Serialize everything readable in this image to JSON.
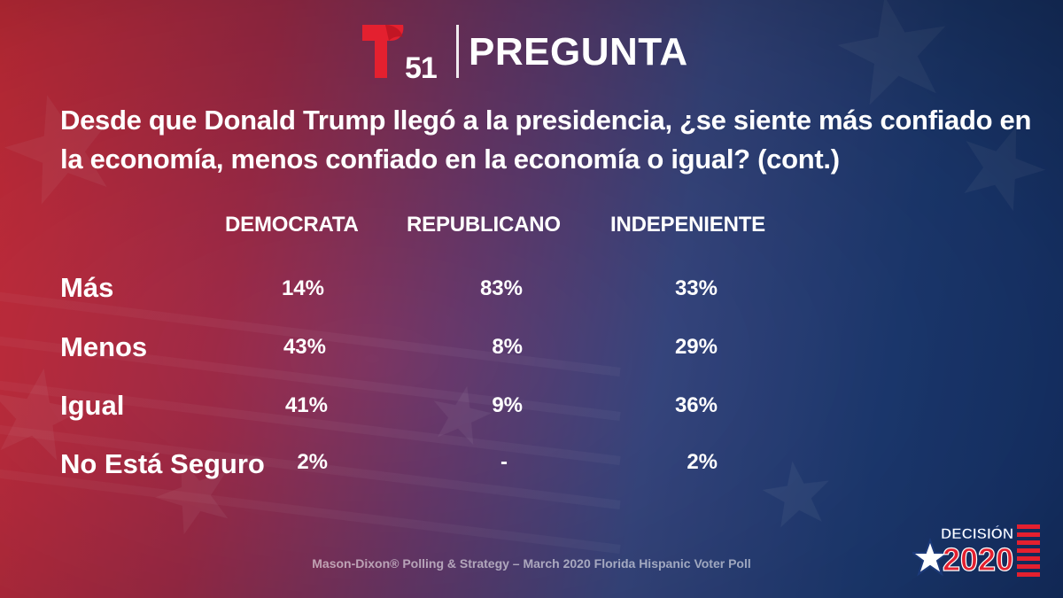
{
  "header": {
    "logo_number": "51",
    "title": "PREGUNTA"
  },
  "question": "Desde que Donald Trump llegó a la presidencia, ¿se siente más confiado en la economía, menos confiado en la economía o igual? (cont.)",
  "chart_data": {
    "type": "table",
    "columns": [
      "DEMOCRATA",
      "REPUBLICANO",
      "INDEPENIENTE"
    ],
    "rows": [
      {
        "label": "Más",
        "values": [
          "14%",
          "83%",
          "33%"
        ]
      },
      {
        "label": "Menos",
        "values": [
          "43%",
          "8%",
          "29%"
        ]
      },
      {
        "label": "Igual",
        "values": [
          "41%",
          "9%",
          "36%"
        ]
      },
      {
        "label": "No Está Seguro",
        "values": [
          "2%",
          "-",
          "2%"
        ]
      }
    ]
  },
  "source": "Mason-Dixon® Polling & Strategy – March 2020 Florida Hispanic Voter Poll",
  "badge": {
    "line1": "DECISIÓN",
    "line2": "2020"
  },
  "colors": {
    "brand_red": "#e4202f",
    "background_red": "#d8303e",
    "background_blue": "#173672",
    "text": "#ffffff"
  },
  "icons": [
    "telemundo-t-logo",
    "star-icon",
    "flag-stripes-icon"
  ]
}
